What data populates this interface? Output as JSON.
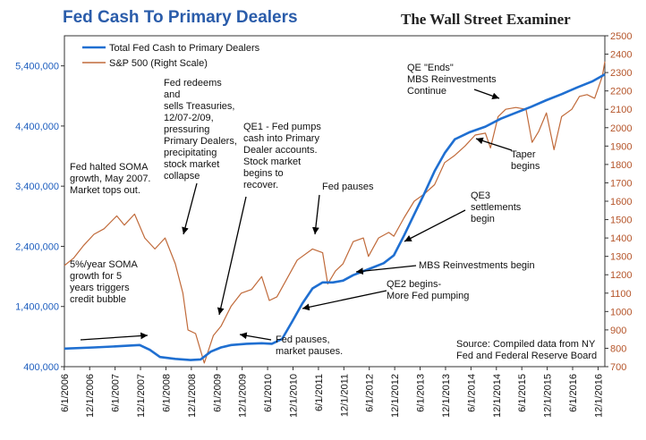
{
  "chart_data": {
    "type": "line",
    "title": "Fed Cash To Primary Dealers",
    "brand": "The Wall Street Examiner",
    "source_note": [
      "Source: Compiled data from NY",
      "Fed and Federal Reserve Board"
    ],
    "legend_placement": "top-left",
    "grid": false,
    "x_labels": [
      "6/1/2006",
      "12/1/2006",
      "6/1/2007",
      "12/1/2007",
      "6/1/2008",
      "12/1/2008",
      "6/1/2009",
      "12/1/2009",
      "6/1/2010",
      "12/1/2010",
      "6/1/2011",
      "12/1/2011",
      "6/1/2012",
      "12/1/2012",
      "6/1/2013",
      "12/1/2013",
      "6/1/2014",
      "12/1/2014",
      "6/1/2015",
      "12/1/2015",
      "6/1/2016",
      "12/1/2016"
    ],
    "y_left": {
      "ticks": [
        "400,000",
        "1,400,000",
        "2,400,000",
        "3,400,000",
        "4,400,000",
        "5,400,000"
      ],
      "tick_values": [
        400000,
        1400000,
        2400000,
        3400000,
        4400000,
        5400000
      ],
      "range": [
        400000,
        5900000
      ]
    },
    "y_right": {
      "ticks": [
        "700",
        "800",
        "900",
        "1000",
        "1100",
        "1200",
        "1300",
        "1400",
        "1500",
        "1600",
        "1700",
        "1800",
        "1900",
        "2000",
        "2100",
        "2200",
        "2300",
        "2400",
        "2500"
      ],
      "range": [
        700,
        2500
      ]
    },
    "x_range": [
      2006.42,
      2017.05
    ],
    "series": [
      {
        "name": "Total Fed Cash to Primary Dealers",
        "axis": "left",
        "color": "#1f6fd1",
        "points": [
          [
            2006.42,
            700000
          ],
          [
            2007.0,
            720000
          ],
          [
            2007.5,
            740000
          ],
          [
            2007.9,
            760000
          ],
          [
            2008.1,
            680000
          ],
          [
            2008.3,
            560000
          ],
          [
            2008.6,
            530000
          ],
          [
            2008.9,
            510000
          ],
          [
            2009.1,
            520000
          ],
          [
            2009.3,
            650000
          ],
          [
            2009.5,
            720000
          ],
          [
            2009.7,
            760000
          ],
          [
            2010.0,
            780000
          ],
          [
            2010.3,
            790000
          ],
          [
            2010.5,
            780000
          ],
          [
            2010.7,
            860000
          ],
          [
            2010.9,
            1150000
          ],
          [
            2011.1,
            1450000
          ],
          [
            2011.3,
            1700000
          ],
          [
            2011.5,
            1800000
          ],
          [
            2011.7,
            1800000
          ],
          [
            2011.9,
            1830000
          ],
          [
            2012.1,
            1920000
          ],
          [
            2012.4,
            2020000
          ],
          [
            2012.7,
            2120000
          ],
          [
            2012.9,
            2250000
          ],
          [
            2013.1,
            2580000
          ],
          [
            2013.3,
            2930000
          ],
          [
            2013.5,
            3280000
          ],
          [
            2013.7,
            3650000
          ],
          [
            2013.9,
            3950000
          ],
          [
            2014.1,
            4180000
          ],
          [
            2014.4,
            4300000
          ],
          [
            2014.7,
            4390000
          ],
          [
            2015.0,
            4520000
          ],
          [
            2015.3,
            4620000
          ],
          [
            2015.6,
            4720000
          ],
          [
            2015.9,
            4830000
          ],
          [
            2016.2,
            4930000
          ],
          [
            2016.5,
            5040000
          ],
          [
            2016.8,
            5140000
          ],
          [
            2017.05,
            5260000
          ]
        ]
      },
      {
        "name": "S&P 500 (Right Scale)",
        "axis": "right",
        "color": "#c06a3a",
        "points": [
          [
            2006.42,
            1250
          ],
          [
            2006.6,
            1290
          ],
          [
            2006.8,
            1360
          ],
          [
            2007.0,
            1420
          ],
          [
            2007.2,
            1450
          ],
          [
            2007.45,
            1520
          ],
          [
            2007.6,
            1470
          ],
          [
            2007.8,
            1530
          ],
          [
            2008.0,
            1400
          ],
          [
            2008.2,
            1340
          ],
          [
            2008.4,
            1400
          ],
          [
            2008.6,
            1260
          ],
          [
            2008.75,
            1100
          ],
          [
            2008.85,
            900
          ],
          [
            2009.0,
            880
          ],
          [
            2009.17,
            720
          ],
          [
            2009.35,
            870
          ],
          [
            2009.5,
            920
          ],
          [
            2009.7,
            1030
          ],
          [
            2009.9,
            1100
          ],
          [
            2010.1,
            1120
          ],
          [
            2010.3,
            1190
          ],
          [
            2010.45,
            1060
          ],
          [
            2010.6,
            1080
          ],
          [
            2010.8,
            1180
          ],
          [
            2011.0,
            1280
          ],
          [
            2011.3,
            1340
          ],
          [
            2011.5,
            1320
          ],
          [
            2011.6,
            1150
          ],
          [
            2011.75,
            1220
          ],
          [
            2011.9,
            1260
          ],
          [
            2012.1,
            1380
          ],
          [
            2012.3,
            1400
          ],
          [
            2012.4,
            1300
          ],
          [
            2012.6,
            1400
          ],
          [
            2012.8,
            1430
          ],
          [
            2012.9,
            1410
          ],
          [
            2013.1,
            1510
          ],
          [
            2013.3,
            1600
          ],
          [
            2013.5,
            1640
          ],
          [
            2013.7,
            1690
          ],
          [
            2013.9,
            1810
          ],
          [
            2014.1,
            1850
          ],
          [
            2014.3,
            1900
          ],
          [
            2014.5,
            1960
          ],
          [
            2014.7,
            1970
          ],
          [
            2014.8,
            1890
          ],
          [
            2014.95,
            2060
          ],
          [
            2015.1,
            2100
          ],
          [
            2015.3,
            2110
          ],
          [
            2015.5,
            2100
          ],
          [
            2015.62,
            1920
          ],
          [
            2015.75,
            1980
          ],
          [
            2015.9,
            2080
          ],
          [
            2016.05,
            1880
          ],
          [
            2016.2,
            2060
          ],
          [
            2016.4,
            2100
          ],
          [
            2016.55,
            2170
          ],
          [
            2016.7,
            2180
          ],
          [
            2016.85,
            2160
          ],
          [
            2017.0,
            2280
          ],
          [
            2017.05,
            2360
          ]
        ]
      }
    ],
    "annotations": [
      {
        "id": "a1",
        "lines": [
          "Fed halted SOMA",
          "growth, May 2007.",
          "Market tops out."
        ]
      },
      {
        "id": "a2",
        "lines": [
          "5%/year SOMA",
          "growth for 5",
          "years triggers",
          "credit bubble"
        ]
      },
      {
        "id": "a3",
        "lines": [
          "Fed redeems",
          "and",
          "sells Treasuries,",
          "12/07-2/09,",
          "pressuring",
          "Primary Dealers,",
          "precipitating",
          "stock market",
          "collapse"
        ]
      },
      {
        "id": "a4",
        "lines": [
          "QE1 - Fed pumps",
          "cash into Primary",
          "Dealer accounts.",
          "Stock market",
          "begins to",
          "recover."
        ]
      },
      {
        "id": "a5",
        "lines": [
          "Fed pauses"
        ]
      },
      {
        "id": "a6",
        "lines": [
          "Fed pauses,",
          "market pauses."
        ]
      },
      {
        "id": "a7",
        "lines": [
          "QE2 begins-",
          "More Fed pumping"
        ]
      },
      {
        "id": "a8",
        "lines": [
          "MBS Reinvestments begin"
        ]
      },
      {
        "id": "a9",
        "lines": [
          "QE3",
          "settlements",
          "begin"
        ]
      },
      {
        "id": "a10",
        "lines": [
          "QE \"Ends\"",
          "MBS Reinvestments",
          "Continue"
        ]
      },
      {
        "id": "a11",
        "lines": [
          "Taper",
          "begins"
        ]
      }
    ]
  }
}
